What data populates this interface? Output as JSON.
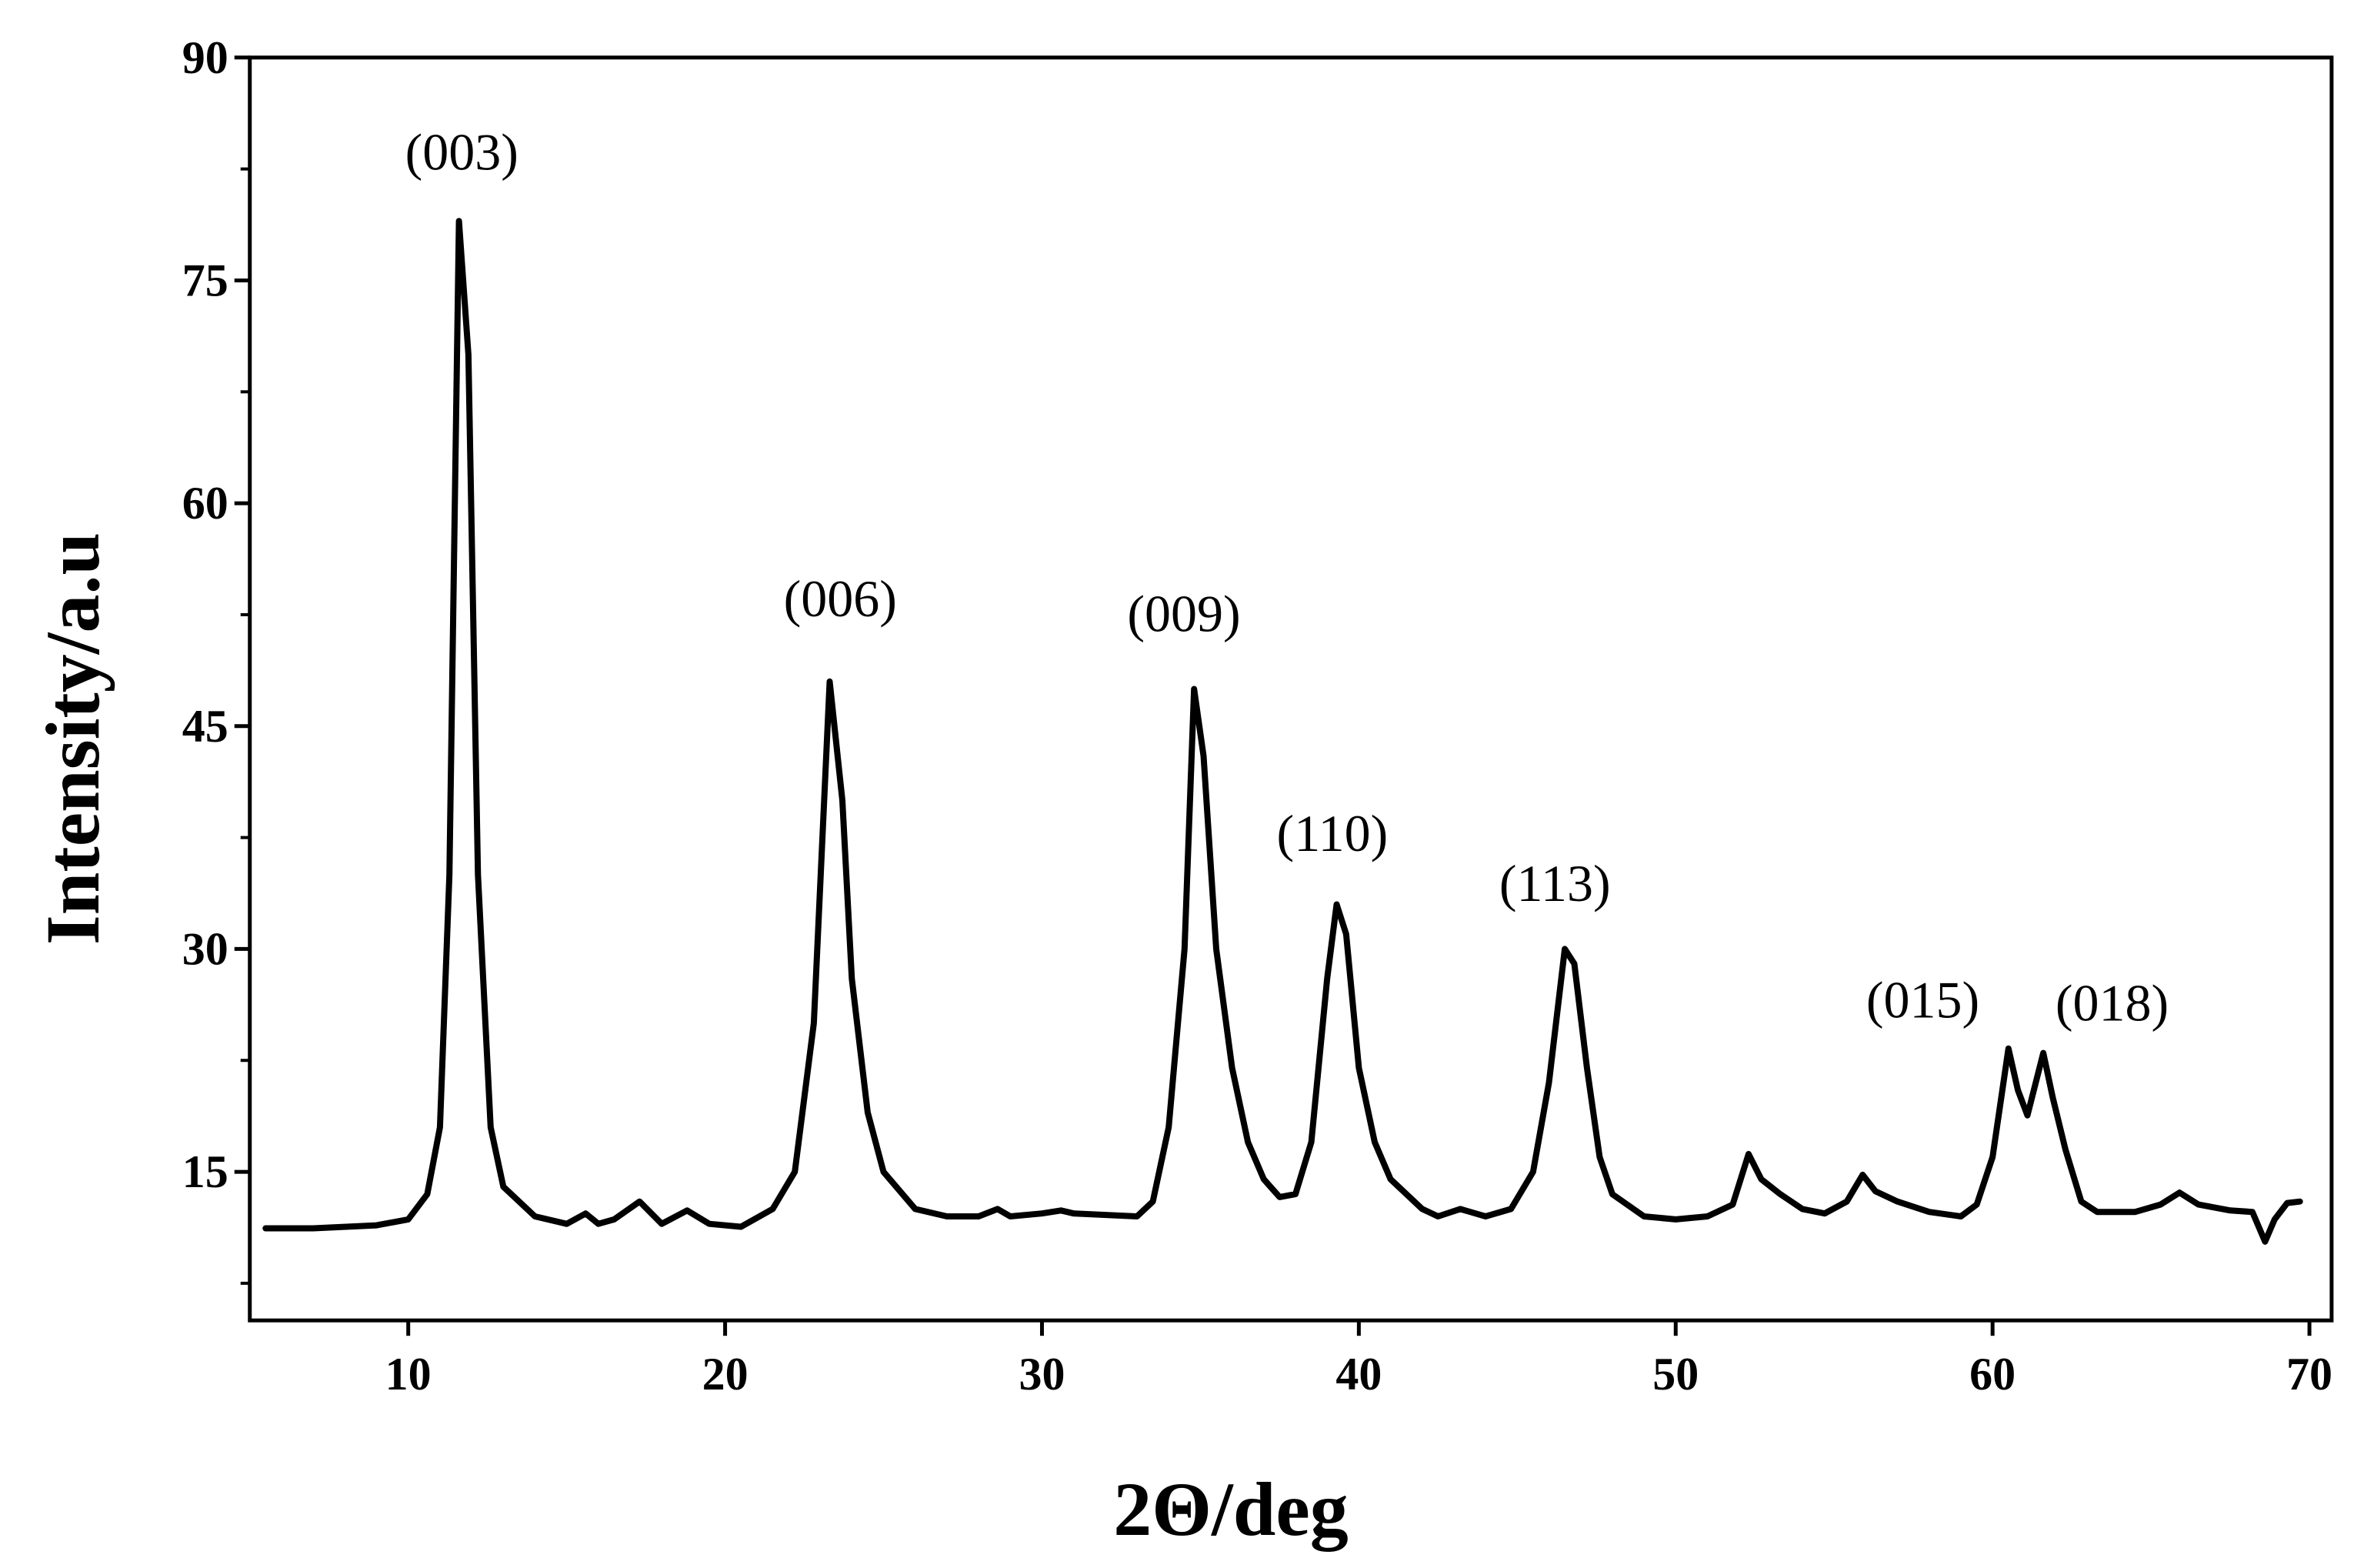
{
  "chart_data": {
    "type": "line",
    "x_label": "2Θ/deg",
    "y_label": "Intensity/a.u",
    "xlim": [
      5,
      70.7
    ],
    "ylim": [
      5,
      90
    ],
    "xticks": [
      10,
      20,
      30,
      40,
      50,
      60,
      70
    ],
    "yticks": [
      15,
      30,
      45,
      60,
      75,
      90
    ],
    "yminorticks": [
      7.5,
      22.5,
      37.5,
      52.5,
      67.5,
      82.5
    ],
    "series": [
      {
        "color": "#000000",
        "x": [
          5.5,
          7,
          9,
          10,
          10.6,
          11,
          11.3,
          11.6,
          11.9,
          12.2,
          12.6,
          13,
          14,
          15,
          15.6,
          16,
          16.5,
          17.3,
          18,
          18.8,
          19.5,
          20.5,
          21.5,
          22.2,
          22.8,
          23.3,
          23.7,
          24,
          24.5,
          25,
          26,
          27,
          28,
          28.6,
          29,
          30,
          30.6,
          31,
          33,
          33.5,
          34,
          34.5,
          34.8,
          35.1,
          35.5,
          36,
          36.5,
          37,
          37.5,
          38,
          38.5,
          39,
          39.3,
          39.6,
          40,
          40.5,
          41,
          42,
          42.5,
          43.2,
          44,
          44.8,
          45.5,
          46,
          46.5,
          46.8,
          47.2,
          47.6,
          48,
          49,
          50,
          51,
          51.8,
          52.3,
          52.7,
          53.3,
          54,
          54.7,
          55.4,
          55.9,
          56.3,
          57,
          58,
          59,
          59.5,
          60,
          60.5,
          60.8,
          61.1,
          61.6,
          61.9,
          62.3,
          62.8,
          63.3,
          64.5,
          65.3,
          65.9,
          66.5,
          67.5,
          68.2,
          68.6,
          68.9,
          69.3,
          69.7
        ],
        "values": [
          11.2,
          11.2,
          11.4,
          11.8,
          13.5,
          18,
          35,
          79,
          70,
          35,
          18,
          14,
          12,
          11.5,
          12.2,
          11.5,
          11.8,
          13,
          11.5,
          12.4,
          11.5,
          11.3,
          12.5,
          15,
          25,
          48,
          40,
          28,
          19,
          15,
          12.5,
          12,
          12,
          12.5,
          12,
          12.2,
          12.4,
          12.2,
          12,
          13,
          18,
          30,
          47.5,
          43,
          30,
          22,
          17,
          14.5,
          13.3,
          13.5,
          17,
          28,
          33,
          31,
          22,
          17,
          14.5,
          12.5,
          12,
          12.5,
          12,
          12.5,
          15,
          21,
          30,
          29,
          22,
          16,
          13.5,
          12,
          11.8,
          12,
          12.8,
          16.2,
          14.5,
          13.5,
          12.5,
          12.2,
          13,
          14.8,
          13.7,
          13,
          12.3,
          12,
          12.8,
          16,
          23.3,
          20.5,
          18.8,
          23,
          20,
          16.5,
          13,
          12.3,
          12.3,
          12.8,
          13.6,
          12.8,
          12.4,
          12.3,
          10.3,
          11.8,
          12.9,
          13
        ]
      }
    ],
    "annotations": [
      "(003)",
      "(006)",
      "(009)",
      "(110)",
      "(113)",
      "(015)",
      "(018)"
    ]
  }
}
